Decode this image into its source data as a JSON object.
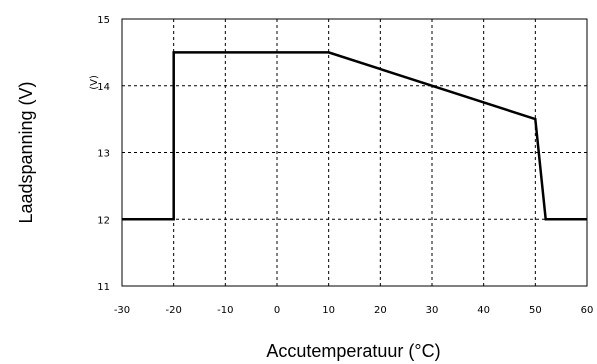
{
  "chart_data": {
    "type": "line",
    "title": "",
    "xlabel": "Accutemperatuur (°C)",
    "ylabel": "Laadspanning (V)",
    "overlay_text": "(V)",
    "xlim": [
      -30,
      60
    ],
    "ylim": [
      11,
      15
    ],
    "xticks": [
      -30,
      -20,
      -10,
      0,
      10,
      20,
      30,
      40,
      50,
      60
    ],
    "yticks": [
      11,
      12,
      13,
      14,
      15
    ],
    "grid": true,
    "grid_style": "dashed",
    "series": [
      {
        "color": "#000000",
        "x": [
          -30,
          -20,
          -20,
          10,
          50,
          52,
          60
        ],
        "y": [
          12,
          12,
          14.5,
          14.5,
          13.5,
          12,
          12
        ]
      }
    ]
  }
}
